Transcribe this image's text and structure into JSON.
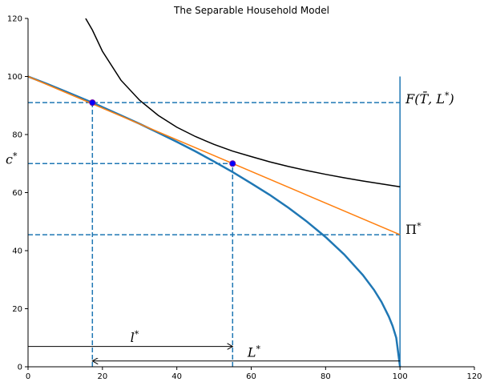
{
  "chart_data": {
    "type": "line",
    "title": "The Separable Household Model",
    "xlabel": "",
    "ylabel": "",
    "xlim": [
      0,
      120
    ],
    "ylim": [
      0,
      120
    ],
    "xticks": [
      0,
      20,
      40,
      60,
      80,
      100,
      120
    ],
    "yticks": [
      0,
      20,
      40,
      60,
      80,
      100,
      120
    ],
    "grid": false,
    "colors": {
      "production": "#1f77b4",
      "indifference": "#000000",
      "budget": "#ff7f0e",
      "guides": "#1f77b4",
      "points": "#0000ff",
      "arrows": "#000000"
    },
    "series": [
      {
        "role": "production_frontier",
        "x": [
          0,
          5,
          10,
          17.3,
          25,
          30,
          35,
          40,
          45,
          50,
          55,
          60,
          65,
          70,
          75,
          80,
          85,
          90,
          93,
          95,
          97,
          98,
          99,
          100
        ],
        "y": [
          100,
          97.5,
          94.9,
          91.0,
          86.6,
          83.7,
          80.6,
          77.5,
          74.2,
          70.7,
          67.1,
          63.2,
          59.2,
          54.8,
          50.0,
          44.7,
          38.7,
          31.6,
          26.5,
          22.4,
          17.3,
          14.1,
          10.0,
          0
        ]
      },
      {
        "role": "indifference_curve",
        "x": [
          15.5,
          17.3,
          20,
          25,
          30,
          35,
          40,
          45,
          50,
          55,
          60,
          65,
          70,
          75,
          80,
          85,
          90,
          95,
          100
        ],
        "y": [
          120,
          116.0,
          108.7,
          98.7,
          91.8,
          86.6,
          82.5,
          79.3,
          76.6,
          74.3,
          72.4,
          70.6,
          69.0,
          67.6,
          66.3,
          65.1,
          64.0,
          63.0,
          62.0
        ]
      },
      {
        "role": "budget_line",
        "x": [
          0,
          100
        ],
        "y": [
          100,
          45.5
        ]
      }
    ],
    "points": [
      {
        "x": 17.3,
        "y": 91
      },
      {
        "x": 55,
        "y": 70
      }
    ],
    "hlines": [
      {
        "y": 91,
        "x": [
          0,
          100
        ]
      },
      {
        "y": 70,
        "x": [
          0,
          55
        ]
      },
      {
        "y": 45.5,
        "x": [
          0,
          100
        ]
      }
    ],
    "vlines_dashed": [
      {
        "x": 17.3,
        "y": [
          0,
          91
        ]
      },
      {
        "x": 55,
        "y": [
          0,
          70
        ]
      }
    ],
    "vline_solid": {
      "x": 100,
      "y": [
        0,
        100
      ]
    },
    "arrows": [
      {
        "from": [
          0,
          7
        ],
        "to": [
          55,
          7
        ],
        "label": "l*"
      },
      {
        "from": [
          100,
          2
        ],
        "to": [
          17.3,
          2
        ],
        "label": "L*"
      }
    ],
    "annotations": {
      "c_star": "c*",
      "l_star": "l*",
      "L_star": "L*",
      "F_label": "F(T̄, L*)",
      "Pi_star": "Π*"
    }
  }
}
